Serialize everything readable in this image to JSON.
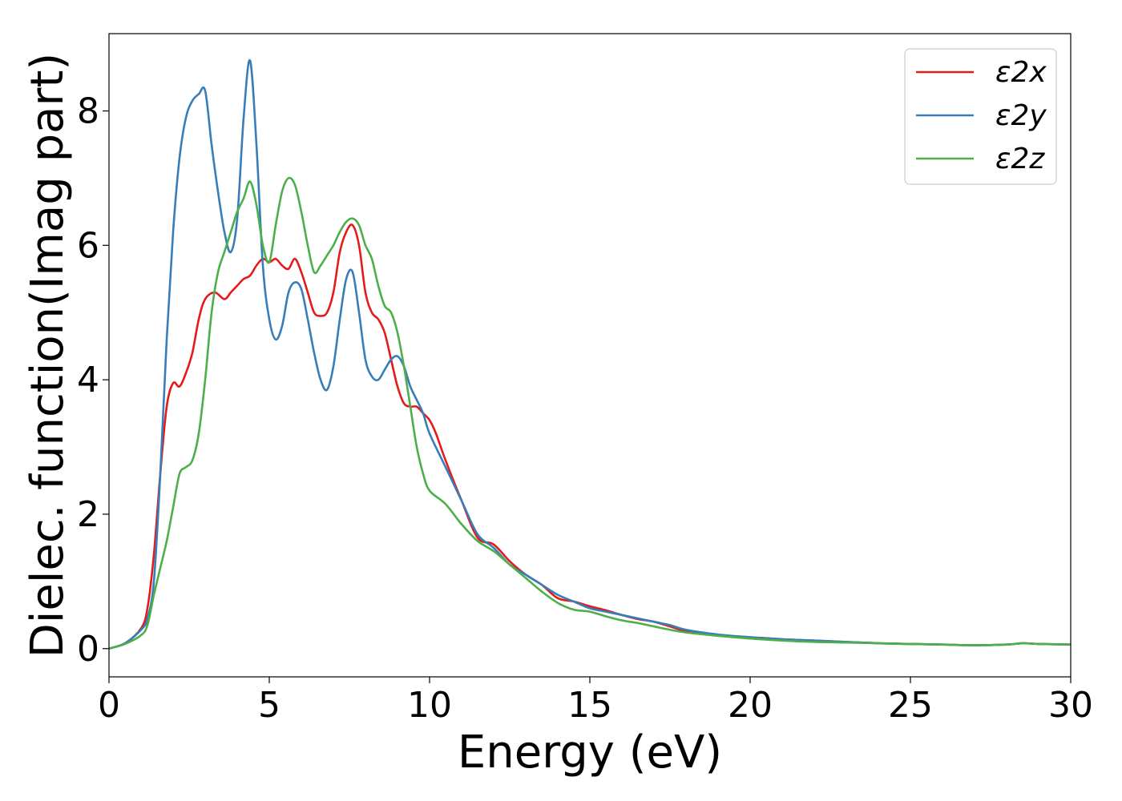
{
  "chart_data": {
    "type": "line",
    "xlabel": "Energy (eV)",
    "ylabel": "Dielec. function(Imag part)",
    "xlim": [
      0,
      30
    ],
    "ylim": [
      -0.42,
      9.15
    ],
    "xticks": [
      0,
      5,
      10,
      15,
      20,
      25,
      30
    ],
    "yticks": [
      0,
      2,
      4,
      6,
      8
    ],
    "grid": false,
    "legend": "top-right",
    "series": [
      {
        "name": "ε2x",
        "color": "#e41a1c",
        "x": [
          0,
          0.5,
          1.0,
          1.2,
          1.4,
          1.6,
          1.8,
          2.0,
          2.2,
          2.4,
          2.6,
          2.8,
          3.0,
          3.3,
          3.6,
          3.8,
          4.0,
          4.2,
          4.4,
          4.6,
          4.8,
          5.0,
          5.2,
          5.4,
          5.6,
          5.8,
          6.0,
          6.2,
          6.4,
          6.6,
          6.8,
          7.0,
          7.2,
          7.4,
          7.6,
          7.8,
          8.0,
          8.2,
          8.4,
          8.6,
          8.8,
          9.0,
          9.2,
          9.4,
          9.6,
          9.8,
          10.0,
          10.2,
          10.5,
          11.0,
          11.5,
          12.0,
          12.5,
          13.0,
          13.5,
          14.0,
          14.5,
          15.0,
          15.5,
          16.0,
          16.5,
          17.0,
          17.5,
          18.0,
          19.0,
          20.0,
          21.0,
          22.0,
          23.0,
          24.0,
          25.0,
          26.0,
          27.0,
          28.0,
          28.5,
          29.0,
          30.0
        ],
        "y": [
          0.0,
          0.08,
          0.3,
          0.6,
          1.4,
          2.6,
          3.6,
          3.95,
          3.9,
          4.1,
          4.4,
          4.9,
          5.2,
          5.3,
          5.2,
          5.3,
          5.4,
          5.5,
          5.55,
          5.7,
          5.8,
          5.75,
          5.8,
          5.7,
          5.65,
          5.8,
          5.6,
          5.3,
          5.0,
          4.95,
          5.0,
          5.3,
          5.9,
          6.2,
          6.3,
          6.0,
          5.3,
          5.0,
          4.9,
          4.7,
          4.3,
          3.9,
          3.65,
          3.6,
          3.6,
          3.5,
          3.4,
          3.2,
          2.8,
          2.2,
          1.65,
          1.55,
          1.3,
          1.1,
          0.95,
          0.75,
          0.7,
          0.63,
          0.57,
          0.5,
          0.44,
          0.4,
          0.33,
          0.26,
          0.2,
          0.17,
          0.14,
          0.12,
          0.1,
          0.08,
          0.07,
          0.06,
          0.05,
          0.06,
          0.08,
          0.07,
          0.06
        ]
      },
      {
        "name": "ε2y",
        "color": "#377eb8",
        "x": [
          0,
          0.5,
          1.0,
          1.2,
          1.4,
          1.6,
          1.8,
          2.0,
          2.2,
          2.4,
          2.6,
          2.8,
          3.0,
          3.2,
          3.4,
          3.6,
          3.8,
          4.0,
          4.2,
          4.4,
          4.6,
          4.8,
          5.0,
          5.2,
          5.4,
          5.6,
          5.8,
          6.0,
          6.2,
          6.4,
          6.6,
          6.8,
          7.0,
          7.2,
          7.4,
          7.6,
          7.8,
          8.0,
          8.2,
          8.4,
          8.6,
          8.8,
          9.0,
          9.2,
          9.4,
          9.6,
          9.8,
          10.0,
          10.5,
          11.0,
          11.5,
          12.0,
          12.5,
          13.0,
          13.5,
          14.0,
          14.5,
          15.0,
          15.5,
          16.0,
          16.5,
          17.0,
          17.5,
          18.0,
          19.0,
          20.0,
          21.0,
          22.0,
          23.0,
          24.0,
          25.0,
          26.0,
          27.0,
          28.0,
          28.5,
          29.0,
          30.0
        ],
        "y": [
          0.0,
          0.08,
          0.28,
          0.45,
          1.0,
          2.6,
          4.6,
          6.2,
          7.3,
          7.9,
          8.15,
          8.25,
          8.3,
          7.5,
          6.8,
          6.2,
          5.9,
          6.4,
          7.9,
          8.75,
          7.5,
          5.7,
          4.9,
          4.6,
          4.8,
          5.3,
          5.45,
          5.35,
          4.9,
          4.4,
          4.0,
          3.85,
          4.2,
          4.9,
          5.5,
          5.6,
          5.0,
          4.3,
          4.05,
          4.0,
          4.15,
          4.3,
          4.35,
          4.2,
          3.9,
          3.7,
          3.5,
          3.2,
          2.7,
          2.2,
          1.7,
          1.5,
          1.25,
          1.1,
          0.95,
          0.8,
          0.7,
          0.6,
          0.55,
          0.5,
          0.45,
          0.4,
          0.35,
          0.28,
          0.21,
          0.17,
          0.14,
          0.12,
          0.1,
          0.08,
          0.07,
          0.06,
          0.05,
          0.06,
          0.08,
          0.07,
          0.06
        ]
      },
      {
        "name": "ε2z",
        "color": "#4daf4a",
        "x": [
          0,
          0.5,
          1.0,
          1.2,
          1.4,
          1.6,
          1.8,
          2.0,
          2.2,
          2.4,
          2.6,
          2.8,
          3.0,
          3.2,
          3.4,
          3.6,
          3.8,
          4.0,
          4.2,
          4.4,
          4.6,
          4.8,
          5.0,
          5.2,
          5.4,
          5.6,
          5.8,
          6.0,
          6.2,
          6.4,
          6.6,
          6.8,
          7.0,
          7.2,
          7.4,
          7.6,
          7.8,
          8.0,
          8.2,
          8.4,
          8.6,
          8.8,
          9.0,
          9.2,
          9.4,
          9.6,
          9.8,
          10.0,
          10.5,
          11.0,
          11.5,
          12.0,
          12.5,
          13.0,
          13.5,
          14.0,
          14.5,
          15.0,
          15.5,
          16.0,
          16.5,
          17.0,
          17.5,
          18.0,
          19.0,
          20.0,
          21.0,
          22.0,
          23.0,
          24.0,
          25.0,
          26.0,
          27.0,
          28.0,
          28.5,
          29.0,
          30.0
        ],
        "y": [
          0.0,
          0.07,
          0.2,
          0.35,
          0.8,
          1.2,
          1.6,
          2.1,
          2.6,
          2.7,
          2.8,
          3.2,
          4.0,
          5.0,
          5.6,
          5.9,
          6.2,
          6.5,
          6.7,
          6.95,
          6.6,
          6.0,
          5.75,
          6.3,
          6.8,
          7.0,
          6.9,
          6.5,
          6.0,
          5.6,
          5.7,
          5.85,
          6.0,
          6.2,
          6.35,
          6.4,
          6.3,
          6.0,
          5.8,
          5.4,
          5.1,
          5.0,
          4.7,
          4.2,
          3.6,
          3.0,
          2.6,
          2.35,
          2.15,
          1.85,
          1.6,
          1.45,
          1.25,
          1.05,
          0.85,
          0.68,
          0.58,
          0.55,
          0.48,
          0.42,
          0.38,
          0.33,
          0.28,
          0.24,
          0.19,
          0.15,
          0.12,
          0.1,
          0.09,
          0.08,
          0.07,
          0.06,
          0.05,
          0.06,
          0.08,
          0.07,
          0.06
        ]
      }
    ]
  }
}
